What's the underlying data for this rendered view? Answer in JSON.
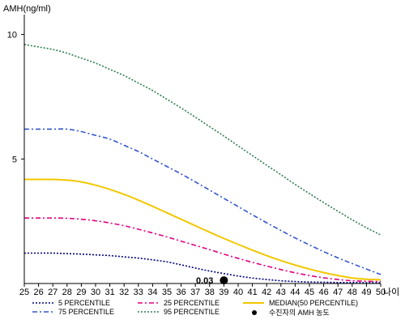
{
  "chart_data": {
    "type": "line",
    "xlabel": "나이",
    "ylabel": "AMH(ng/ml)",
    "xlim": [
      25,
      50
    ],
    "ylim": [
      0,
      10.8
    ],
    "x_ticks": [
      25,
      26,
      27,
      28,
      29,
      30,
      31,
      32,
      33,
      34,
      35,
      36,
      37,
      38,
      39,
      40,
      41,
      42,
      43,
      44,
      45,
      46,
      47,
      48,
      49,
      50
    ],
    "y_ticks": [
      5,
      10
    ],
    "x": [
      25,
      26,
      27,
      28,
      29,
      30,
      31,
      32,
      33,
      34,
      35,
      36,
      37,
      38,
      39,
      40,
      41,
      42,
      43,
      44,
      45,
      46,
      47,
      48,
      49,
      50
    ],
    "series": [
      {
        "name": "5 PERCENTILE",
        "color": "#000080",
        "dash": "2,2",
        "values": [
          1.22,
          1.22,
          1.22,
          1.2,
          1.18,
          1.15,
          1.12,
          1.07,
          1.02,
          0.95,
          0.87,
          0.75,
          0.62,
          0.5,
          0.4,
          0.3,
          0.22,
          0.16,
          0.11,
          0.08,
          0.06,
          0.05,
          0.04,
          0.035,
          0.03,
          0.03
        ]
      },
      {
        "name": "25 PERCENTILE",
        "color": "#e0007f",
        "dash": "6,3,2,3",
        "values": [
          2.63,
          2.63,
          2.63,
          2.62,
          2.58,
          2.52,
          2.43,
          2.32,
          2.18,
          2.03,
          1.87,
          1.7,
          1.53,
          1.36,
          1.18,
          1.01,
          0.85,
          0.7,
          0.56,
          0.43,
          0.32,
          0.23,
          0.16,
          0.11,
          0.09,
          0.08
        ]
      },
      {
        "name": "MEDIAN(50 PERCENTILE)",
        "color": "#f2c700",
        "dash": "",
        "values": [
          4.18,
          4.18,
          4.18,
          4.15,
          4.08,
          3.95,
          3.78,
          3.58,
          3.35,
          3.1,
          2.84,
          2.58,
          2.32,
          2.06,
          1.81,
          1.57,
          1.34,
          1.12,
          0.92,
          0.74,
          0.58,
          0.44,
          0.32,
          0.22,
          0.17,
          0.15
        ]
      },
      {
        "name": "75 PERCENTILE",
        "color": "#3355cc",
        "dash": "6,3,2,3",
        "values": [
          6.2,
          6.2,
          6.2,
          6.2,
          6.1,
          5.95,
          5.8,
          5.55,
          5.3,
          5.0,
          4.7,
          4.4,
          4.08,
          3.75,
          3.42,
          3.09,
          2.76,
          2.44,
          2.13,
          1.83,
          1.55,
          1.28,
          1.03,
          0.8,
          0.58,
          0.36
        ]
      },
      {
        "name": "95 PERCENTILE",
        "color": "#2e7d4f",
        "dash": "2,2",
        "values": [
          9.6,
          9.5,
          9.4,
          9.25,
          9.05,
          8.85,
          8.6,
          8.35,
          8.05,
          7.75,
          7.4,
          7.05,
          6.68,
          6.3,
          5.92,
          5.53,
          5.14,
          4.75,
          4.37,
          3.98,
          3.61,
          3.25,
          2.9,
          2.56,
          2.24,
          1.95
        ]
      }
    ],
    "point": {
      "name": "수진자의 AMH 농도",
      "x": 39,
      "y": 0.03,
      "label": "0.03"
    }
  }
}
